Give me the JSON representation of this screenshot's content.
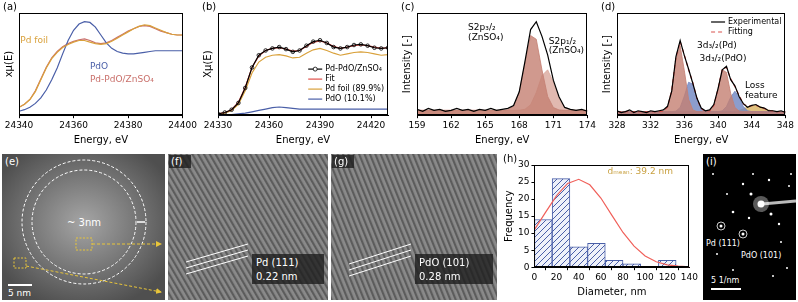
{
  "chart_data": [
    {
      "panel": "(a)",
      "type": "line",
      "xlabel": "Energy, eV",
      "ylabel": "xμ(E)",
      "x": [
        24340,
        24342,
        24344,
        24346,
        24348,
        24350,
        24352,
        24354,
        24356,
        24358,
        24360,
        24362,
        24364,
        24366,
        24368,
        24370,
        24372,
        24374,
        24376,
        24378,
        24380,
        24382,
        24384,
        24386,
        24388,
        24390,
        24392,
        24394,
        24396,
        24398,
        24400
      ],
      "series": [
        {
          "color": "#d9a13b",
          "values": [
            0.1,
            0.14,
            0.2,
            0.3,
            0.45,
            0.6,
            0.72,
            0.8,
            0.86,
            0.9,
            0.93,
            0.95,
            0.95,
            0.93,
            0.91,
            0.9,
            0.91,
            0.94,
            0.98,
            1.02,
            1.06,
            1.1,
            1.13,
            1.15,
            1.14,
            1.11,
            1.08,
            1.05,
            1.03,
            1.02,
            1.02
          ]
        },
        {
          "color": "#4a5fa8",
          "values": [
            0.05,
            0.07,
            0.1,
            0.15,
            0.22,
            0.32,
            0.45,
            0.6,
            0.78,
            0.95,
            1.08,
            1.16,
            1.19,
            1.18,
            1.12,
            1.02,
            0.92,
            0.85,
            0.81,
            0.79,
            0.78,
            0.78,
            0.79,
            0.8,
            0.81,
            0.82,
            0.82,
            0.82,
            0.82,
            0.82,
            0.82
          ]
        },
        {
          "color": "#c9706b",
          "values": [
            0.1,
            0.14,
            0.2,
            0.31,
            0.46,
            0.61,
            0.73,
            0.81,
            0.87,
            0.91,
            0.94,
            0.96,
            0.97,
            0.95,
            0.92,
            0.91,
            0.92,
            0.95,
            0.99,
            1.03,
            1.07,
            1.1,
            1.13,
            1.14,
            1.13,
            1.1,
            1.07,
            1.05,
            1.03,
            1.02,
            1.02
          ]
        }
      ],
      "annotations": [
        {
          "text": "Pd foil",
          "x": 24340.5,
          "y": 0.95,
          "color": "#d9a13b"
        },
        {
          "text": "PdO",
          "x": 24366,
          "y": 0.62,
          "color": "#4a5fa8"
        },
        {
          "text": "Pd-PdO/ZnSO₄",
          "x": 24366,
          "y": 0.45,
          "color": "#c9706b"
        }
      ],
      "xlim": [
        24340,
        24400
      ],
      "xticks": [
        24340,
        24360,
        24380,
        24400
      ],
      "ylim": [
        0,
        1.3
      ],
      "tick_labels": "x",
      "grid": false
    },
    {
      "panel": "(b)",
      "type": "line",
      "xlabel": "Energy, eV",
      "ylabel": "Xμ(E)",
      "x": [
        24330,
        24334,
        24338,
        24342,
        24346,
        24350,
        24354,
        24358,
        24362,
        24366,
        24370,
        24374,
        24378,
        24382,
        24386,
        24390,
        24394,
        24398,
        24402,
        24406,
        24410,
        24414,
        24418,
        24422,
        24426,
        24430
      ],
      "series": [
        {
          "name": "Pd-PdO/ZnSO₄",
          "color": "#000000",
          "marker": "circle",
          "values": [
            0.02,
            0.04,
            0.08,
            0.18,
            0.4,
            0.7,
            0.88,
            0.95,
            0.98,
            1.0,
            0.97,
            0.93,
            0.95,
            1.02,
            1.08,
            1.1,
            1.06,
            1.0,
            0.98,
            1.0,
            1.03,
            1.04,
            1.02,
            0.99,
            0.98,
            0.99
          ]
        },
        {
          "name": "Fit",
          "color": "#e0504a",
          "values": [
            0.02,
            0.04,
            0.08,
            0.19,
            0.41,
            0.7,
            0.87,
            0.95,
            0.98,
            0.99,
            0.97,
            0.94,
            0.95,
            1.01,
            1.07,
            1.09,
            1.06,
            1.01,
            0.98,
            1.0,
            1.02,
            1.03,
            1.02,
            1.0,
            0.98,
            0.99
          ]
        },
        {
          "name": "Pd foil (89.9%)",
          "color": "#d9a13b",
          "values": [
            0.02,
            0.03,
            0.07,
            0.16,
            0.36,
            0.62,
            0.78,
            0.85,
            0.88,
            0.89,
            0.87,
            0.84,
            0.85,
            0.91,
            0.96,
            0.98,
            0.95,
            0.91,
            0.88,
            0.9,
            0.92,
            0.93,
            0.92,
            0.9,
            0.88,
            0.89
          ]
        },
        {
          "name": "PdO (10.1%)",
          "color": "#4a5fa8",
          "values": [
            0.0,
            0.0,
            0.01,
            0.02,
            0.03,
            0.05,
            0.07,
            0.09,
            0.11,
            0.12,
            0.11,
            0.1,
            0.09,
            0.09,
            0.09,
            0.09,
            0.09,
            0.09,
            0.09,
            0.09,
            0.09,
            0.09,
            0.09,
            0.09,
            0.09,
            0.09
          ]
        }
      ],
      "xlim": [
        24330,
        24430
      ],
      "xticks": [
        24330,
        24360,
        24390,
        24420
      ],
      "ylim": [
        0,
        1.5
      ],
      "tick_labels": "x",
      "grid": false,
      "legend": "right"
    },
    {
      "panel": "(c)",
      "type": "line",
      "xlabel": "Energy, eV",
      "ylabel": "Intensity [-]",
      "x": [
        159,
        159.5,
        160,
        160.5,
        161,
        161.5,
        162,
        162.5,
        163,
        163.5,
        164,
        164.5,
        165,
        165.5,
        166,
        166.5,
        167,
        167.5,
        168,
        168.5,
        169,
        169.5,
        170,
        170.5,
        171,
        171.5,
        172,
        172.5,
        173,
        173.5,
        174
      ],
      "series": [
        {
          "color": "#000000",
          "values": [
            0.06,
            0.04,
            0.07,
            0.05,
            0.06,
            0.04,
            0.05,
            0.07,
            0.05,
            0.06,
            0.04,
            0.06,
            0.05,
            0.07,
            0.05,
            0.06,
            0.07,
            0.1,
            0.24,
            0.55,
            0.88,
            0.96,
            0.81,
            0.62,
            0.36,
            0.19,
            0.08,
            0.06,
            0.05,
            0.06,
            0.04
          ]
        },
        {
          "type": "area",
          "color": "#c47f72",
          "values": [
            0.05,
            0.05,
            0.05,
            0.05,
            0.05,
            0.05,
            0.05,
            0.05,
            0.05,
            0.05,
            0.05,
            0.05,
            0.05,
            0.05,
            0.05,
            0.05,
            0.056,
            0.092,
            0.234,
            0.536,
            0.818,
            0.78,
            0.466,
            0.193,
            0.079,
            0.054,
            0.05,
            0.05,
            0.05,
            0.05,
            0.05
          ]
        },
        {
          "type": "area",
          "color": "#d9a89c",
          "values": [
            0.05,
            0.05,
            0.05,
            0.05,
            0.05,
            0.05,
            0.05,
            0.05,
            0.05,
            0.05,
            0.05,
            0.05,
            0.05,
            0.05,
            0.05,
            0.05,
            0.05,
            0.05,
            0.051,
            0.061,
            0.107,
            0.233,
            0.407,
            0.466,
            0.341,
            0.173,
            0.081,
            0.055,
            0.05,
            0.05,
            0.05
          ]
        }
      ],
      "annotations": [
        {
          "text": "S2p₃/₂",
          "x": 163.5,
          "y": 0.9
        },
        {
          "text": "(ZnSO₄)",
          "x": 163.5,
          "y": 0.8
        },
        {
          "text": "S2p₁/₂",
          "x": 170.6,
          "y": 0.76
        },
        {
          "text": "(ZnSO₄)",
          "x": 170.6,
          "y": 0.66
        }
      ],
      "xlim": [
        159,
        174
      ],
      "xticks": [
        159,
        162,
        165,
        168,
        171,
        174
      ],
      "ylim": [
        0,
        1.05
      ],
      "tick_labels": "x",
      "grid": false
    },
    {
      "panel": "(d)",
      "type": "line",
      "xlabel": "Energy, eV",
      "ylabel": "Intensity [-]",
      "x": [
        328,
        328.5,
        329,
        329.5,
        330,
        330.5,
        331,
        331.5,
        332,
        332.5,
        333,
        333.5,
        334,
        334.5,
        335,
        335.5,
        336,
        336.5,
        337,
        337.5,
        338,
        338.5,
        339,
        339.5,
        340,
        340.5,
        341,
        341.5,
        342,
        342.5,
        343,
        343.5,
        344,
        344.5,
        345,
        345.5,
        346,
        346.5,
        347,
        347.5,
        348
      ],
      "series": [
        {
          "name": "Experimental",
          "color": "#000000",
          "values": [
            0.05,
            0.03,
            0.04,
            0.06,
            0.03,
            0.05,
            0.04,
            0.03,
            0.05,
            0.04,
            0.05,
            0.06,
            0.1,
            0.27,
            0.66,
            0.84,
            0.67,
            0.52,
            0.36,
            0.19,
            0.08,
            0.05,
            0.06,
            0.12,
            0.3,
            0.51,
            0.55,
            0.4,
            0.33,
            0.21,
            0.13,
            0.09,
            0.11,
            0.12,
            0.09,
            0.08,
            0.05,
            0.05,
            0.04,
            0.05,
            0.03
          ]
        },
        {
          "name": "Fitting",
          "color": "#d9534f",
          "line_style": "dashed",
          "values": [
            0.04,
            0.04,
            0.04,
            0.04,
            0.04,
            0.04,
            0.04,
            0.04,
            0.04,
            0.04,
            0.04,
            0.045,
            0.09,
            0.28,
            0.646,
            0.827,
            0.677,
            0.511,
            0.369,
            0.184,
            0.074,
            0.044,
            0.049,
            0.108,
            0.293,
            0.523,
            0.538,
            0.409,
            0.323,
            0.223,
            0.127,
            0.101,
            0.107,
            0.109,
            0.095,
            0.074,
            0.057,
            0.046,
            0.04,
            0.04,
            0.04
          ]
        },
        {
          "type": "area",
          "color": "#c47f72",
          "values": [
            0.04,
            0.04,
            0.04,
            0.04,
            0.04,
            0.04,
            0.04,
            0.04,
            0.04,
            0.04,
            0.04,
            0.045,
            0.09,
            0.28,
            0.64,
            0.78,
            0.5,
            0.18,
            0.06,
            0.04,
            0.04,
            0.04,
            0.04,
            0.04,
            0.04,
            0.04,
            0.04,
            0.04,
            0.04,
            0.04,
            0.04,
            0.04,
            0.04,
            0.04,
            0.04,
            0.04,
            0.04,
            0.04,
            0.04,
            0.04,
            0.04
          ]
        },
        {
          "type": "area",
          "color": "#6f84c0",
          "values": [
            0.04,
            0.04,
            0.04,
            0.04,
            0.04,
            0.04,
            0.04,
            0.04,
            0.04,
            0.04,
            0.04,
            0.04,
            0.04,
            0.04,
            0.046,
            0.087,
            0.217,
            0.371,
            0.349,
            0.184,
            0.074,
            0.044,
            0.04,
            0.04,
            0.04,
            0.04,
            0.04,
            0.04,
            0.04,
            0.04,
            0.04,
            0.04,
            0.04,
            0.04,
            0.04,
            0.04,
            0.04,
            0.04,
            0.04,
            0.04,
            0.04
          ]
        },
        {
          "type": "area",
          "color": "#c47f72",
          "values": [
            0.04,
            0.04,
            0.04,
            0.04,
            0.04,
            0.04,
            0.04,
            0.04,
            0.04,
            0.04,
            0.04,
            0.04,
            0.04,
            0.04,
            0.04,
            0.04,
            0.04,
            0.04,
            0.04,
            0.04,
            0.04,
            0.04,
            0.049,
            0.108,
            0.293,
            0.513,
            0.481,
            0.246,
            0.088,
            0.046,
            0.04,
            0.04,
            0.04,
            0.04,
            0.04,
            0.04,
            0.04,
            0.04,
            0.04,
            0.04,
            0.04
          ]
        },
        {
          "type": "area",
          "color": "#6f84c0",
          "values": [
            0.04,
            0.04,
            0.04,
            0.04,
            0.04,
            0.04,
            0.04,
            0.04,
            0.04,
            0.04,
            0.04,
            0.04,
            0.04,
            0.04,
            0.04,
            0.04,
            0.04,
            0.04,
            0.04,
            0.04,
            0.04,
            0.04,
            0.04,
            0.04,
            0.04,
            0.05,
            0.097,
            0.203,
            0.27,
            0.203,
            0.097,
            0.05,
            0.04,
            0.04,
            0.04,
            0.04,
            0.04,
            0.04,
            0.04,
            0.04,
            0.04
          ]
        },
        {
          "type": "area",
          "color": "#d9b25f",
          "values": [
            0.04,
            0.04,
            0.04,
            0.04,
            0.04,
            0.04,
            0.04,
            0.04,
            0.04,
            0.04,
            0.04,
            0.04,
            0.04,
            0.04,
            0.04,
            0.04,
            0.04,
            0.04,
            0.04,
            0.04,
            0.04,
            0.04,
            0.04,
            0.04,
            0.04,
            0.04,
            0.04,
            0.04,
            0.045,
            0.054,
            0.07,
            0.091,
            0.107,
            0.109,
            0.095,
            0.074,
            0.057,
            0.046,
            0.04,
            0.04,
            0.04
          ]
        }
      ],
      "annotations": [
        {
          "text": "3d₃/₂(Pd)",
          "x": 337.5,
          "y": 0.78
        },
        {
          "text": "3d₃/₂(PdO)",
          "x": 337.8,
          "y": 0.64
        },
        {
          "text": "Loss feature",
          "x": 343.2,
          "y": 0.33
        }
      ],
      "xlim": [
        328,
        348
      ],
      "xticks": [
        328,
        332,
        336,
        340,
        344,
        348
      ],
      "ylim": [
        0,
        1.15
      ],
      "tick_labels": "x",
      "grid": false,
      "legend": "top right"
    },
    {
      "panel": "(h)",
      "type": "histogram",
      "xlabel": "Diameter, nm",
      "ylabel": "Frequency",
      "bins": [
        0,
        16,
        32,
        48,
        64,
        80,
        96,
        112,
        128
      ],
      "counts": [
        14,
        26,
        6,
        7,
        2,
        1,
        0,
        2
      ],
      "color": "#4a5fa8",
      "series": [
        {
          "type": "line",
          "color": "#f0605a",
          "x": [
            0,
            10,
            20,
            30,
            40,
            50,
            60,
            70,
            80,
            90,
            100,
            110,
            120,
            130,
            140
          ],
          "values": [
            11.0,
            16.1,
            21.0,
            24.6,
            25.8,
            24.2,
            20.3,
            15.2,
            10.2,
            6.2,
            3.3,
            1.6,
            0.7,
            0.3,
            0.1
          ]
        }
      ],
      "annotations": [
        {
          "text": "dₘₑₐₙ: 39.2 nm",
          "x": 66,
          "y": 28,
          "color": "#c8a040"
        }
      ],
      "xlim": [
        0,
        140
      ],
      "xticks": [
        0,
        20,
        40,
        60,
        80,
        100,
        120,
        140
      ],
      "ylim": [
        0,
        30
      ],
      "yticks": [
        0,
        5,
        10,
        15,
        20,
        25,
        30
      ],
      "grid": false
    }
  ],
  "images": [
    {
      "panel": "(e)",
      "annotation": "~ 3nm",
      "scale_bar": "5 nm"
    },
    {
      "panel": "(f)",
      "plane": "Pd (111)",
      "d_spacing": "0.22 nm"
    },
    {
      "panel": "(g)",
      "plane": "PdO (101)",
      "d_spacing": "0.28 nm"
    },
    {
      "panel": "(i)",
      "rings": [
        "Pd (111)",
        "PdO (101)"
      ],
      "scale_bar": "5 1/nm"
    }
  ]
}
